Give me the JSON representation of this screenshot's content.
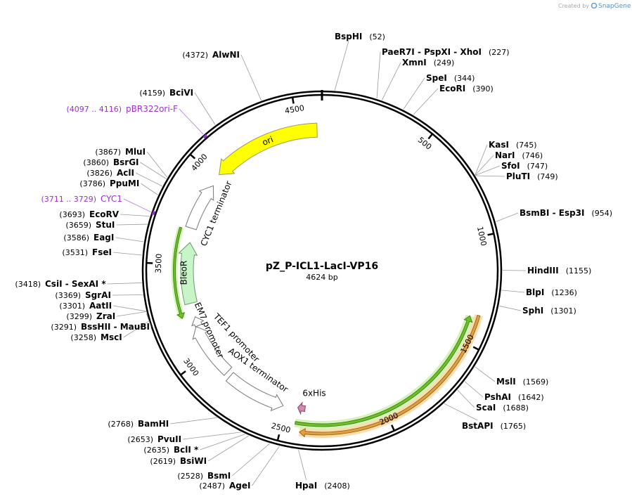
{
  "watermark": {
    "prefix": "Created by",
    "brand": "SnapGene"
  },
  "plasmid": {
    "name": "pZ_P-ICL1-LacI-VP16",
    "size": {
      "value": 4624,
      "label": "4624 bp"
    }
  },
  "ticks": [
    500,
    1000,
    1500,
    2000,
    2500,
    3000,
    3500,
    4000,
    4500
  ],
  "sites": [
    {
      "name": "BspHI",
      "pos": "(52)"
    },
    {
      "name": "PaeR7I - PspXI - XhoI",
      "pos": "(227)"
    },
    {
      "name": "XmnI",
      "pos": "(249)"
    },
    {
      "name": "SpeI",
      "pos": "(344)"
    },
    {
      "name": "EcoRI",
      "pos": "(390)"
    },
    {
      "name": "KasI",
      "pos": "(745)"
    },
    {
      "name": "NarI",
      "pos": "(746)"
    },
    {
      "name": "SfoI",
      "pos": "(747)"
    },
    {
      "name": "PluTI",
      "pos": "(749)"
    },
    {
      "name": "BsmBI - Esp3I",
      "pos": "(954)"
    },
    {
      "name": "HindIII",
      "pos": "(1155)"
    },
    {
      "name": "BlpI",
      "pos": "(1236)"
    },
    {
      "name": "SphI",
      "pos": "(1301)"
    },
    {
      "name": "MslI",
      "pos": "(1569)"
    },
    {
      "name": "PshAI",
      "pos": "(1642)"
    },
    {
      "name": "ScaI",
      "pos": "(1688)"
    },
    {
      "name": "BstAPI",
      "pos": "(1765)"
    },
    {
      "name": "HpaI",
      "pos": "(2408)"
    },
    {
      "name": "AgeI",
      "pos": "(2487)"
    },
    {
      "name": "BsmI",
      "pos": "(2528)"
    },
    {
      "name": "BsiWI",
      "pos": "(2619)"
    },
    {
      "name": "BclI *",
      "pos": "(2635)"
    },
    {
      "name": "PvuII",
      "pos": "(2653)"
    },
    {
      "name": "BamHI",
      "pos": "(2768)"
    },
    {
      "name": "MscI",
      "pos": "(3258)"
    },
    {
      "name": "BssHII - MauBI",
      "pos": "(3291)"
    },
    {
      "name": "ZraI",
      "pos": "(3299)"
    },
    {
      "name": "AatII",
      "pos": "(3301)"
    },
    {
      "name": "SgrAI",
      "pos": "(3369)"
    },
    {
      "name": "CsiI - SexAI *",
      "pos": "(3418)"
    },
    {
      "name": "FseI",
      "pos": "(3531)"
    },
    {
      "name": "EagI",
      "pos": "(3586)"
    },
    {
      "name": "StuI",
      "pos": "(3659)"
    },
    {
      "name": "EcoRV",
      "pos": "(3693)"
    },
    {
      "name": "CYC1",
      "pos": "(3711 .. 3729)"
    },
    {
      "name": "PpuMI",
      "pos": "(3786)"
    },
    {
      "name": "AclI",
      "pos": "(3826)"
    },
    {
      "name": "BsrGI",
      "pos": "(3860)"
    },
    {
      "name": "MluI",
      "pos": "(3867)"
    },
    {
      "name": "pBR322ori-F",
      "pos": "(4097 .. 4116)"
    },
    {
      "name": "BciVI",
      "pos": "(4159)"
    },
    {
      "name": "AlwNI",
      "pos": "(4372)"
    }
  ],
  "features": [
    {
      "label": "ori"
    },
    {
      "label": "CYC1 terminator"
    },
    {
      "label": "BleoR"
    },
    {
      "label": "EM7 promoter"
    },
    {
      "label": "TEF1 promoter"
    },
    {
      "label": "AOX1 terminator"
    },
    {
      "label": "6xHis"
    }
  ]
}
